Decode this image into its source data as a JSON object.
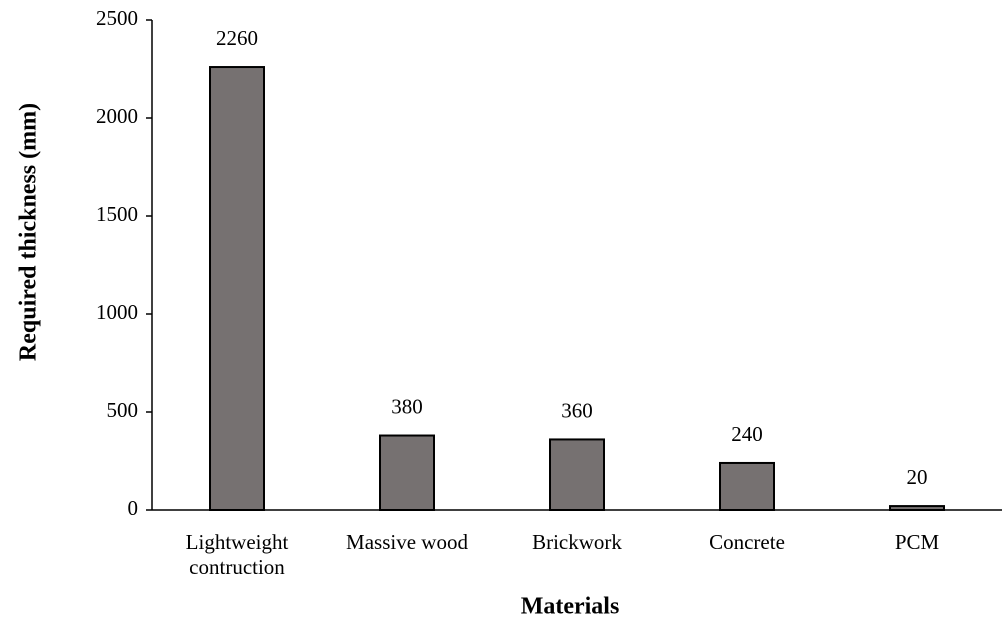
{
  "chart_data": {
    "type": "bar",
    "categories": [
      "Lightweight contruction",
      "Massive wood",
      "Brickwork",
      "Concrete",
      "PCM"
    ],
    "values": [
      2260,
      380,
      360,
      240,
      20
    ],
    "color": "#767171",
    "xlabel": "Materials",
    "ylabel": "Required thickness (mm)",
    "ylim": [
      0,
      2500
    ],
    "yticks": [
      0,
      500,
      1000,
      1500,
      2000,
      2500
    ],
    "data_labels": true
  }
}
